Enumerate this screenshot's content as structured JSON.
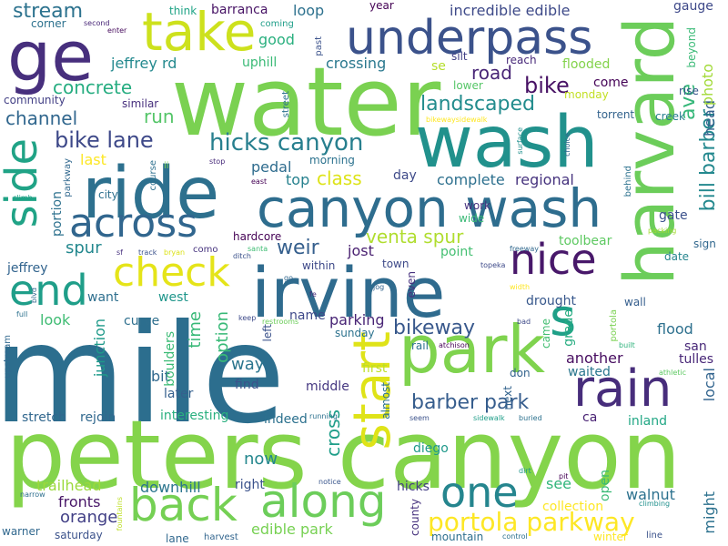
{
  "words": [
    {
      "t": "mile",
      "c": "#2c6e8e"
    },
    {
      "t": "peters canyon",
      "c": "#84d44b"
    },
    {
      "t": "water",
      "c": "#7ad151"
    },
    {
      "t": "wash",
      "c": "#21918c"
    },
    {
      "t": "ride",
      "c": "#2d708e"
    },
    {
      "t": "irvine",
      "c": "#2f6b8e"
    },
    {
      "t": "harvard",
      "c": "#6ccd5a"
    },
    {
      "t": "canyon wash",
      "c": "#2e6d8e"
    },
    {
      "t": "underpass",
      "c": "#3b528b"
    },
    {
      "t": "take",
      "c": "#cde11d"
    },
    {
      "t": "ge",
      "c": "#472f7d"
    },
    {
      "t": "park",
      "c": "#7fd34e"
    },
    {
      "t": "rain",
      "c": "#472d7b"
    },
    {
      "t": "along",
      "c": "#6ccd5a"
    },
    {
      "t": "back",
      "c": "#75d054"
    },
    {
      "t": "across",
      "c": "#31668e"
    },
    {
      "t": "side",
      "c": "#20a386"
    },
    {
      "t": "check",
      "c": "#e5e419"
    },
    {
      "t": "nice",
      "c": "#48186a"
    },
    {
      "t": "end",
      "c": "#1f9e89"
    },
    {
      "t": "start",
      "c": "#dfe318"
    },
    {
      "t": "one",
      "c": "#25858e"
    },
    {
      "t": "s",
      "c": "#1fa088"
    },
    {
      "t": "portola parkway",
      "c": "#fde725"
    },
    {
      "t": "hicks canyon",
      "c": "#277f8e"
    },
    {
      "t": "bike lane",
      "c": "#3e4989"
    },
    {
      "t": "barber park",
      "c": "#365d8d"
    },
    {
      "t": "bikeway",
      "c": "#38588c"
    },
    {
      "t": "stream",
      "c": "#2c728e"
    },
    {
      "t": "concrete",
      "c": "#27ad81"
    },
    {
      "t": "channel",
      "c": "#31678e"
    },
    {
      "t": "landscaped",
      "c": "#228c8d"
    },
    {
      "t": "bill barber",
      "c": "#23888e"
    },
    {
      "t": "ave",
      "c": "#35b779"
    },
    {
      "t": "head",
      "c": "#35608d"
    },
    {
      "t": "photo",
      "c": "#a2da37"
    },
    {
      "t": "incredible edible",
      "c": "#3e4a89"
    },
    {
      "t": "jeffrey rd",
      "c": "#23898e"
    },
    {
      "t": "crossing",
      "c": "#2a788e"
    },
    {
      "t": "road",
      "c": "#482576"
    },
    {
      "t": "bike",
      "c": "#471164"
    },
    {
      "t": "run",
      "c": "#54c568"
    },
    {
      "t": "weir",
      "c": "#355f8d"
    },
    {
      "t": "class",
      "c": "#dde318"
    },
    {
      "t": "pedal",
      "c": "#2f6c8e"
    },
    {
      "t": "venta spur",
      "c": "#b0dd2f"
    },
    {
      "t": "regional",
      "c": "#46337e"
    },
    {
      "t": "complete",
      "c": "#2d708e"
    },
    {
      "t": "loop",
      "c": "#2d718e"
    },
    {
      "t": "barranca",
      "c": "#471365"
    },
    {
      "t": "good",
      "c": "#2ab07f"
    },
    {
      "t": "uphill",
      "c": "#3aba76"
    },
    {
      "t": "year",
      "c": "#440154"
    },
    {
      "t": "flooded",
      "c": "#83d34b"
    },
    {
      "t": "reach",
      "c": "#482979"
    },
    {
      "t": "silt",
      "c": "#424186"
    },
    {
      "t": "last",
      "c": "#fde725"
    },
    {
      "t": "top",
      "c": "#26818e"
    },
    {
      "t": "day",
      "c": "#3e4a89"
    },
    {
      "t": "spur",
      "c": "#23888e"
    },
    {
      "t": "portion",
      "c": "#2d718e"
    },
    {
      "t": "jeffrey",
      "c": "#32648e"
    },
    {
      "t": "end2",
      "c": "#1f9e89"
    },
    {
      "t": "jost",
      "c": "#481f70"
    },
    {
      "t": "point",
      "c": "#43bf71"
    },
    {
      "t": "toolbear",
      "c": "#5ec962"
    },
    {
      "t": "gate",
      "c": "#3b518b"
    },
    {
      "t": "date",
      "c": "#25858e"
    },
    {
      "t": "sign",
      "c": "#31678e"
    },
    {
      "t": "flood",
      "c": "#2d708e"
    },
    {
      "t": "san",
      "c": "#482878"
    },
    {
      "t": "another",
      "c": "#470d60"
    },
    {
      "t": "parking",
      "c": "#482475"
    },
    {
      "t": "name",
      "c": "#3e4989"
    },
    {
      "t": "west",
      "c": "#1f968b"
    },
    {
      "t": "look",
      "c": "#3fbc73"
    },
    {
      "t": "time",
      "c": "#38b977"
    },
    {
      "t": "option",
      "c": "#38b977"
    },
    {
      "t": "way",
      "c": "#2b758e"
    },
    {
      "t": "bit",
      "c": "#31688e"
    },
    {
      "t": "junction",
      "c": "#1f9a8a"
    },
    {
      "t": "boulders",
      "c": "#3bbb75"
    },
    {
      "t": "curve",
      "c": "#2e6f8e"
    },
    {
      "t": "want",
      "c": "#2e6f8e"
    },
    {
      "t": "grade",
      "c": "#27ad81"
    },
    {
      "t": "drought",
      "c": "#38588c"
    },
    {
      "t": "wall",
      "c": "#355e8d"
    },
    {
      "t": "local",
      "c": "#32648e"
    },
    {
      "t": "tulles",
      "c": "#482677"
    },
    {
      "t": "waited",
      "c": "#2a778e"
    },
    {
      "t": "don",
      "c": "#33638d"
    },
    {
      "t": "cross",
      "c": "#1f9e89"
    },
    {
      "t": "now",
      "c": "#24878e"
    },
    {
      "t": "walnut",
      "c": "#2c718e"
    },
    {
      "t": "see",
      "c": "#31b57b"
    },
    {
      "t": "orange",
      "c": "#424086"
    },
    {
      "t": "fronts",
      "c": "#481668"
    },
    {
      "t": "trailhead",
      "c": "#9bd93c"
    },
    {
      "t": "downhill",
      "c": "#2b758e"
    },
    {
      "t": "edible park",
      "c": "#77d153"
    },
    {
      "t": "diego",
      "c": "#1f998a"
    },
    {
      "t": "indeed",
      "c": "#2c718e"
    },
    {
      "t": "interesting",
      "c": "#2ab07f"
    },
    {
      "t": "stretch",
      "c": "#31678e"
    },
    {
      "t": "rejoin",
      "c": "#31688e"
    },
    {
      "t": "later",
      "c": "#35608d"
    },
    {
      "t": "find",
      "c": "#3b528b"
    },
    {
      "t": "middle",
      "c": "#453781"
    },
    {
      "t": "first",
      "c": "#bddf26"
    },
    {
      "t": "right",
      "c": "#3b528b"
    },
    {
      "t": "hicks",
      "c": "#433e85"
    },
    {
      "t": "county",
      "c": "#46327e"
    },
    {
      "t": "mountain",
      "c": "#2e6f8e"
    },
    {
      "t": "winter",
      "c": "#fde725"
    },
    {
      "t": "collection",
      "c": "#fde725"
    },
    {
      "t": "might",
      "c": "#2c718e"
    },
    {
      "t": "saturday",
      "c": "#3b528b"
    },
    {
      "t": "lane",
      "c": "#31688e"
    },
    {
      "t": "warner",
      "c": "#31688e"
    },
    {
      "t": "harvest",
      "c": "#32658e"
    },
    {
      "t": "open",
      "c": "#3aba76"
    },
    {
      "t": "inland",
      "c": "#22a785"
    },
    {
      "t": "ca",
      "c": "#482173"
    },
    {
      "t": "corner",
      "c": "#2c718e"
    },
    {
      "t": "second",
      "c": "#482677"
    },
    {
      "t": "enter",
      "c": "#450a5c"
    },
    {
      "t": "think",
      "c": "#20a486"
    },
    {
      "t": "coming",
      "c": "#1f9e89"
    },
    {
      "t": "past",
      "c": "#3b528b"
    },
    {
      "t": "se",
      "c": "#b5de2b"
    },
    {
      "t": "lower",
      "c": "#56c667"
    },
    {
      "t": "come",
      "c": "#440256"
    },
    {
      "t": "monday",
      "c": "#c2df23"
    },
    {
      "t": "rise",
      "c": "#39568c"
    },
    {
      "t": "creek",
      "c": "#277f8e"
    },
    {
      "t": "torrent",
      "c": "#33638d"
    },
    {
      "t": "gauge",
      "c": "#3e4989"
    },
    {
      "t": "beyond",
      "c": "#3aba76"
    },
    {
      "t": "community",
      "c": "#423f85"
    },
    {
      "t": "similar",
      "c": "#472f7d"
    },
    {
      "t": "street",
      "c": "#2c718e"
    },
    {
      "t": "morning",
      "c": "#2c728e"
    },
    {
      "t": "parkway",
      "c": "#31688e"
    },
    {
      "t": "ii",
      "c": "#7ad151"
    },
    {
      "t": "course",
      "c": "#2d708e"
    },
    {
      "t": "stop",
      "c": "#472a7a"
    },
    {
      "t": "east",
      "c": "#440154"
    },
    {
      "t": "surface",
      "c": "#21908d"
    },
    {
      "t": "choice",
      "c": "#31688e"
    },
    {
      "t": "behind",
      "c": "#2c728e"
    },
    {
      "t": "bikewaysidewalk",
      "c": "#fde725"
    },
    {
      "t": "city",
      "c": "#2d708e"
    },
    {
      "t": "climb",
      "c": "#1fa187"
    },
    {
      "t": "wide",
      "c": "#3aba76"
    },
    {
      "t": "work",
      "c": "#46307e"
    },
    {
      "t": "hardcore",
      "c": "#440154"
    },
    {
      "t": "como",
      "c": "#46337e"
    },
    {
      "t": "santa",
      "c": "#3fbc73"
    },
    {
      "t": "town",
      "c": "#3e4a89"
    },
    {
      "t": "freeway",
      "c": "#31688e"
    },
    {
      "t": "packing",
      "c": "#a5db36"
    },
    {
      "t": "bryan",
      "c": "#dce319"
    },
    {
      "t": "track",
      "c": "#3b528b"
    },
    {
      "t": "ditch",
      "c": "#3b528b"
    },
    {
      "t": "within",
      "c": "#3e4989"
    },
    {
      "t": "jog",
      "c": "#33638d"
    },
    {
      "t": "topeka",
      "c": "#3e4a89"
    },
    {
      "t": "width",
      "c": "#fde725"
    },
    {
      "t": "fe",
      "c": "#472c7a"
    },
    {
      "t": "go",
      "c": "#31688e"
    },
    {
      "t": "keep",
      "c": "#3e4a89"
    },
    {
      "t": "restrooms",
      "c": "#6ccd5a"
    },
    {
      "t": "sunday",
      "c": "#2c728e"
    },
    {
      "t": "left",
      "c": "#3b528b"
    },
    {
      "t": "even",
      "c": "#46307e"
    },
    {
      "t": "rail",
      "c": "#2c728e"
    },
    {
      "t": "atchison",
      "c": "#440154"
    },
    {
      "t": "bad",
      "c": "#3e4a89"
    },
    {
      "t": "came",
      "c": "#42be71"
    },
    {
      "t": "portola",
      "c": "#7ad151"
    },
    {
      "t": "built",
      "c": "#2eb37c"
    },
    {
      "t": "athletic",
      "c": "#5ec962"
    },
    {
      "t": "full",
      "c": "#2c718e"
    },
    {
      "t": "upstream",
      "c": "#31688e"
    },
    {
      "t": "blvd",
      "c": "#31688e"
    },
    {
      "t": "sf",
      "c": "#46307e"
    },
    {
      "t": "seem",
      "c": "#3b528b"
    },
    {
      "t": "almost",
      "c": "#2c728e"
    },
    {
      "t": "next",
      "c": "#33638d"
    },
    {
      "t": "running",
      "c": "#2c718e"
    },
    {
      "t": "sidewalk",
      "c": "#1f9e89"
    },
    {
      "t": "buried",
      "c": "#2c718e"
    },
    {
      "t": "pit",
      "c": "#440154"
    },
    {
      "t": "dirt",
      "c": "#1f968b"
    },
    {
      "t": "notice",
      "c": "#39568c"
    },
    {
      "t": "narrow",
      "c": "#2e6f8e"
    },
    {
      "t": "fountains",
      "c": "#bddf26"
    },
    {
      "t": "control",
      "c": "#2c718e"
    },
    {
      "t": "climbing",
      "c": "#21908d"
    },
    {
      "t": "line",
      "c": "#3b528b"
    }
  ]
}
